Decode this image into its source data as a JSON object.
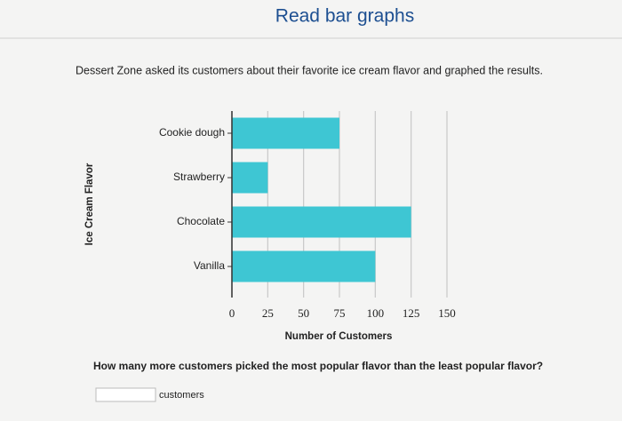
{
  "header": {
    "title": "Read bar graphs"
  },
  "intro": "Dessert Zone asked its customers about their favorite ice cream flavor and graphed the results.",
  "chart_data": {
    "type": "hbar",
    "categories": [
      "Cookie dough",
      "Strawberry",
      "Chocolate",
      "Vanilla"
    ],
    "values": [
      75,
      25,
      125,
      100
    ],
    "color": "#3ec6d3",
    "x_label": "Number of Customers",
    "y_label": "Ice Cream Flavor",
    "xlim": [
      0,
      150
    ],
    "xticks": [
      0,
      25,
      50,
      75,
      100,
      125,
      150
    ],
    "grid": true
  },
  "question": "How many more customers picked the most popular flavor than the least popular flavor?",
  "answer_unit": "customers"
}
